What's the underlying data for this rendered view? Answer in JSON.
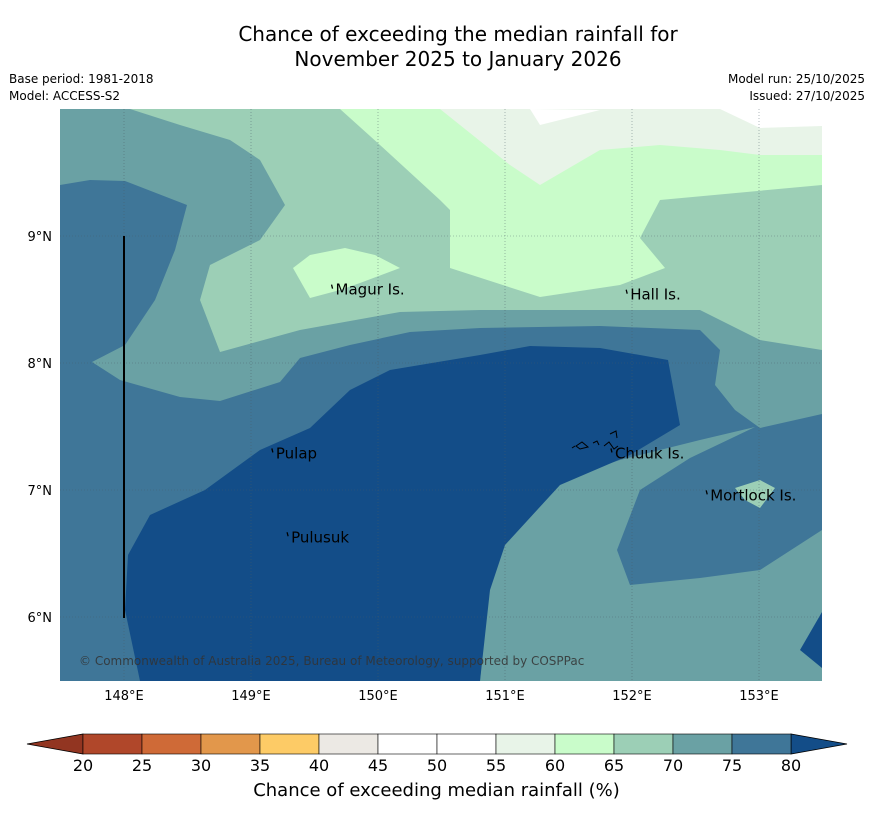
{
  "title": {
    "line1": "Chance of exceeding the median rainfall for",
    "line2": "November 2025 to January 2026"
  },
  "meta": {
    "base_period": "Base period: 1981-2018",
    "model": "Model: ACCESS-S2",
    "model_run": "Model run: 25/10/2025",
    "issued": "Issued: 27/10/2025"
  },
  "map": {
    "x_ticks": [
      "148°E",
      "149°E",
      "150°E",
      "151°E",
      "152°E",
      "153°E"
    ],
    "y_ticks": [
      "9°N",
      "8°N",
      "7°N",
      "6°N"
    ],
    "places": [
      {
        "name": "Magur Is.",
        "lon": 149.65,
        "lat": 8.57
      },
      {
        "name": "Hall Is.",
        "lon": 151.97,
        "lat": 8.53
      },
      {
        "name": "Pulap",
        "lon": 149.18,
        "lat": 7.28
      },
      {
        "name": "Chuuk Is.",
        "lon": 151.85,
        "lat": 7.28
      },
      {
        "name": "Mortlock Is.",
        "lon": 152.6,
        "lat": 6.95
      },
      {
        "name": "Pulusuk",
        "lon": 149.3,
        "lat": 6.62
      }
    ],
    "copyright": "© Commonwealth of Australia 2025, Bureau of Meteorology, supported by COSPPac"
  },
  "colorbar": {
    "ticks": [
      "20",
      "25",
      "30",
      "35",
      "40",
      "45",
      "50",
      "55",
      "60",
      "65",
      "70",
      "75",
      "80"
    ],
    "colors": [
      "#b0472a",
      "#cf6a37",
      "#e2974b",
      "#fdcb66",
      "#ece9e4",
      "#ffffff",
      "#ffffff",
      "#e8f4e8",
      "#c9fcca",
      "#9ccfb6",
      "#6aa1a4",
      "#3f7698"
    ],
    "under_color": "#923521",
    "over_color": "#134d88",
    "label": "Chance of exceeding median rainfall (%)"
  }
}
